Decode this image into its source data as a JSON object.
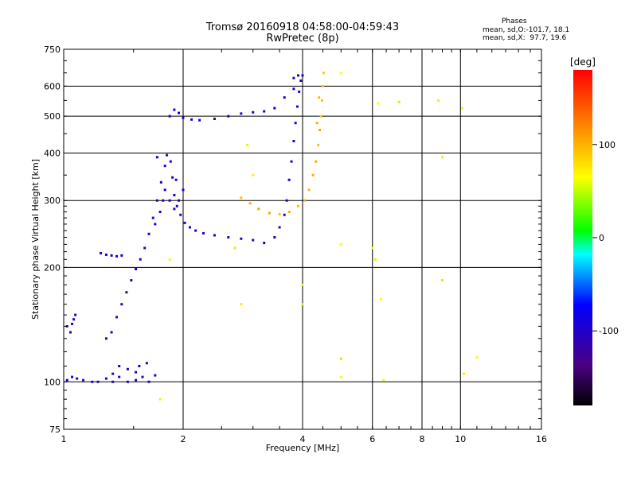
{
  "header": {
    "title_line1": "Tromsø 20160918 04:58:00-04:59:43",
    "title_line2": "RwPretec (8p)",
    "phases_label": "Phases",
    "stat_o": "mean, sd,O:-101.7, 18.1",
    "stat_x": "mean, sd,X:  97.7, 19.6"
  },
  "chart_data": {
    "type": "scatter",
    "xlabel": "Frequency [MHz]",
    "ylabel": "Stationary phase Virtual Height [km]",
    "x_scale": "log",
    "y_scale": "log",
    "xlim": [
      1,
      16
    ],
    "ylim": [
      75,
      750
    ],
    "x_ticks": [
      1,
      2,
      4,
      6,
      8,
      10,
      16
    ],
    "y_ticks": [
      75,
      100,
      200,
      300,
      400,
      500,
      600,
      750
    ],
    "grid": true,
    "colorbar": {
      "label": "[deg]",
      "range": [
        -180,
        180
      ],
      "ticks": [
        100,
        0,
        -100
      ]
    },
    "series": [
      {
        "key": "o_mode_low",
        "phase": -110,
        "points": [
          [
            1.02,
            101
          ],
          [
            1.05,
            103
          ],
          [
            1.08,
            102
          ],
          [
            1.12,
            101
          ],
          [
            1.18,
            100
          ],
          [
            1.22,
            100
          ],
          [
            1.28,
            102
          ],
          [
            1.33,
            100
          ],
          [
            1.38,
            103
          ],
          [
            1.45,
            100
          ],
          [
            1.52,
            101
          ],
          [
            1.58,
            103
          ],
          [
            1.64,
            100
          ],
          [
            1.33,
            105
          ],
          [
            1.38,
            110
          ],
          [
            1.45,
            108
          ],
          [
            1.52,
            106
          ],
          [
            1.55,
            110
          ],
          [
            1.62,
            112
          ],
          [
            1.7,
            104
          ],
          [
            1.02,
            140
          ],
          [
            1.04,
            135
          ],
          [
            1.05,
            142
          ],
          [
            1.07,
            150
          ],
          [
            1.06,
            146
          ]
        ]
      },
      {
        "key": "o_mode_mid",
        "phase": -105,
        "points": [
          [
            1.28,
            130
          ],
          [
            1.32,
            135
          ],
          [
            1.36,
            148
          ],
          [
            1.4,
            160
          ],
          [
            1.44,
            172
          ],
          [
            1.48,
            185
          ],
          [
            1.52,
            198
          ],
          [
            1.56,
            210
          ],
          [
            1.6,
            225
          ],
          [
            1.64,
            245
          ],
          [
            1.68,
            270
          ],
          [
            1.72,
            300
          ],
          [
            1.76,
            335
          ],
          [
            1.8,
            370
          ],
          [
            1.82,
            395
          ],
          [
            1.86,
            380
          ],
          [
            1.88,
            345
          ],
          [
            1.9,
            310
          ],
          [
            1.93,
            290
          ],
          [
            1.97,
            275
          ],
          [
            2.02,
            262
          ],
          [
            2.08,
            255
          ],
          [
            2.15,
            250
          ],
          [
            2.25,
            246
          ],
          [
            2.4,
            243
          ],
          [
            2.6,
            240
          ],
          [
            2.8,
            238
          ],
          [
            3.0,
            236
          ],
          [
            3.2,
            232
          ],
          [
            3.4,
            240
          ],
          [
            3.5,
            255
          ],
          [
            3.6,
            275
          ],
          [
            3.65,
            300
          ],
          [
            3.7,
            340
          ],
          [
            3.75,
            380
          ],
          [
            3.8,
            430
          ],
          [
            3.84,
            480
          ],
          [
            3.88,
            530
          ],
          [
            3.92,
            580
          ],
          [
            3.96,
            620
          ],
          [
            4.0,
            640
          ],
          [
            3.9,
            640
          ],
          [
            3.8,
            630
          ]
        ]
      },
      {
        "key": "o_mode_upper",
        "phase": -95,
        "points": [
          [
            1.24,
            218
          ],
          [
            1.28,
            216
          ],
          [
            1.32,
            215
          ],
          [
            1.36,
            214
          ],
          [
            1.4,
            215
          ],
          [
            1.85,
            500
          ],
          [
            1.9,
            520
          ],
          [
            1.95,
            510
          ],
          [
            2.0,
            495
          ],
          [
            2.1,
            490
          ],
          [
            2.2,
            488
          ],
          [
            2.4,
            492
          ],
          [
            2.6,
            500
          ],
          [
            2.8,
            508
          ],
          [
            3.0,
            512
          ],
          [
            3.2,
            515
          ],
          [
            3.4,
            525
          ],
          [
            3.6,
            560
          ],
          [
            3.8,
            590
          ],
          [
            1.7,
            260
          ],
          [
            1.75,
            280
          ],
          [
            1.78,
            300
          ],
          [
            1.8,
            320
          ],
          [
            1.85,
            300
          ],
          [
            1.9,
            285
          ],
          [
            1.95,
            300
          ],
          [
            2.0,
            320
          ],
          [
            1.92,
            340
          ],
          [
            1.72,
            390
          ]
        ]
      },
      {
        "key": "x_mode",
        "phase": 100,
        "points": [
          [
            2.8,
            305
          ],
          [
            2.95,
            295
          ],
          [
            3.1,
            285
          ],
          [
            3.3,
            278
          ],
          [
            3.5,
            276
          ],
          [
            3.7,
            280
          ],
          [
            3.9,
            290
          ],
          [
            4.05,
            300
          ],
          [
            4.15,
            320
          ],
          [
            4.25,
            350
          ],
          [
            4.32,
            380
          ],
          [
            4.38,
            420
          ],
          [
            4.42,
            460
          ],
          [
            4.45,
            500
          ],
          [
            4.48,
            550
          ],
          [
            4.5,
            600
          ],
          [
            4.52,
            650
          ],
          [
            4.4,
            560
          ],
          [
            4.35,
            480
          ]
        ]
      },
      {
        "key": "scattered",
        "phase": 60,
        "points": [
          [
            5.0,
            650
          ],
          [
            6.2,
            540
          ],
          [
            7.0,
            545
          ],
          [
            8.8,
            550
          ],
          [
            9.0,
            390
          ],
          [
            10.1,
            525
          ],
          [
            6.0,
            225
          ],
          [
            6.1,
            210
          ],
          [
            6.3,
            165
          ],
          [
            5.0,
            230
          ],
          [
            5.0,
            115
          ],
          [
            5.0,
            103
          ],
          [
            6.4,
            101
          ],
          [
            4.0,
            160
          ],
          [
            4.0,
            180
          ],
          [
            9.0,
            185
          ],
          [
            10.2,
            105
          ],
          [
            11.0,
            116
          ],
          [
            2.8,
            160
          ],
          [
            2.9,
            420
          ],
          [
            3.0,
            350
          ],
          [
            2.7,
            225
          ],
          [
            1.85,
            210
          ],
          [
            1.75,
            90
          ]
        ]
      }
    ]
  }
}
